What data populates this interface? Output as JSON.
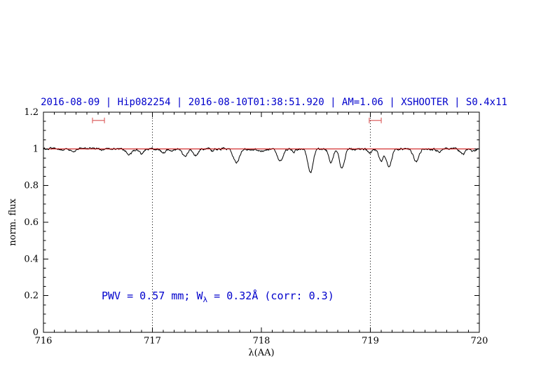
{
  "chart_data": {
    "type": "line",
    "title": "2016-08-09 | Hip082254 | 2016-08-10T01:38:51.920 | AM=1.06 | XSHOOTER | S0.4x11",
    "xlabel": "λ(AA)",
    "ylabel": "norm. flux",
    "xlim": [
      716,
      720
    ],
    "ylim": [
      0,
      1.2
    ],
    "x_ticks": [
      716,
      717,
      718,
      719,
      720
    ],
    "x_tick_labels": [
      "716",
      "717",
      "718",
      "719",
      "720"
    ],
    "y_ticks": [
      0,
      0.2,
      0.4,
      0.6,
      0.8,
      1,
      1.2
    ],
    "y_tick_labels": [
      "0",
      "0.2",
      "0.4",
      "0.6",
      "0.8",
      "1",
      "1.2"
    ],
    "x_minor_step": 0.1,
    "y_minor_step": 0.05,
    "grid": false,
    "dotted_vlines": [
      717,
      719
    ],
    "annotation": {
      "text": "PWV = 0.57 mm; W_λ = 0.32Å (corr: 0.3)",
      "pre": "PWV = 0.57 mm; W",
      "sub": "λ",
      "post": " = 0.32Å (corr: 0.3)"
    },
    "colors": {
      "title": "#0000cc",
      "annotation": "#0000cc",
      "spectrum": "#000000",
      "continuum": "#cc0000",
      "range_markers": "#dd6666",
      "vlines": "#000000",
      "frame": "#000000"
    },
    "range_markers": [
      {
        "x1": 716.45,
        "x2": 716.56,
        "y": 1.155
      },
      {
        "x1": 718.99,
        "x2": 719.1,
        "y": 1.155
      }
    ],
    "series": [
      {
        "name": "observed-spectrum",
        "color": "#000000",
        "baseline": 1.0,
        "noise_sigma": 0.004,
        "absorption_lines": [
          {
            "center": 716.28,
            "depth": 0.012,
            "fwhm": 0.05
          },
          {
            "center": 716.55,
            "depth": 0.01,
            "fwhm": 0.05
          },
          {
            "center": 716.79,
            "depth": 0.032,
            "fwhm": 0.055
          },
          {
            "center": 716.9,
            "depth": 0.028,
            "fwhm": 0.05
          },
          {
            "center": 717.1,
            "depth": 0.022,
            "fwhm": 0.05
          },
          {
            "center": 717.17,
            "depth": 0.015,
            "fwhm": 0.04
          },
          {
            "center": 717.3,
            "depth": 0.045,
            "fwhm": 0.05
          },
          {
            "center": 717.4,
            "depth": 0.038,
            "fwhm": 0.05
          },
          {
            "center": 717.55,
            "depth": 0.012,
            "fwhm": 0.04
          },
          {
            "center": 717.77,
            "depth": 0.075,
            "fwhm": 0.065
          },
          {
            "center": 718.0,
            "depth": 0.015,
            "fwhm": 0.05
          },
          {
            "center": 718.17,
            "depth": 0.07,
            "fwhm": 0.06
          },
          {
            "center": 718.3,
            "depth": 0.015,
            "fwhm": 0.04
          },
          {
            "center": 718.45,
            "depth": 0.13,
            "fwhm": 0.055
          },
          {
            "center": 718.64,
            "depth": 0.07,
            "fwhm": 0.05
          },
          {
            "center": 718.74,
            "depth": 0.105,
            "fwhm": 0.055
          },
          {
            "center": 719.0,
            "depth": 0.02,
            "fwhm": 0.05
          },
          {
            "center": 719.1,
            "depth": 0.06,
            "fwhm": 0.05
          },
          {
            "center": 719.17,
            "depth": 0.1,
            "fwhm": 0.055
          },
          {
            "center": 719.42,
            "depth": 0.068,
            "fwhm": 0.06
          },
          {
            "center": 719.63,
            "depth": 0.015,
            "fwhm": 0.05
          },
          {
            "center": 719.85,
            "depth": 0.033,
            "fwhm": 0.05
          },
          {
            "center": 719.95,
            "depth": 0.015,
            "fwhm": 0.04
          }
        ]
      },
      {
        "name": "continuum-fit",
        "color": "#cc0000",
        "baseline": 1.0,
        "absorption_lines": []
      }
    ]
  }
}
